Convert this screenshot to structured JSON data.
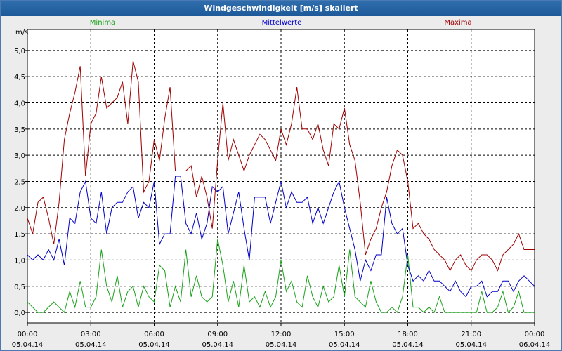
{
  "window": {
    "title": "Windgeschwindigkeit [m/s] skaliert"
  },
  "colors": {
    "minima": "#1aa21a",
    "mittelwerte": "#0000c8",
    "maxima": "#a00000",
    "title_bar": "#1e5a9a"
  },
  "chart_data": {
    "type": "line",
    "title": "Windgeschwindigkeit [m/s] skaliert",
    "ylabel": "m/s",
    "xlabel": "",
    "ylim": [
      -0.2,
      5.4
    ],
    "grid": true,
    "legend_placement": "top",
    "y_ticks": [
      "0,0",
      "0,5",
      "1,0",
      "1,5",
      "2,0",
      "2,5",
      "3,0",
      "3,5",
      "4,0",
      "4,5",
      "5,0"
    ],
    "x_ticks": [
      {
        "time": "00:00",
        "date": "05.04.14"
      },
      {
        "time": "03:00",
        "date": "05.04.14"
      },
      {
        "time": "06:00",
        "date": "05.04.14"
      },
      {
        "time": "09:00",
        "date": "05.04.14"
      },
      {
        "time": "12:00",
        "date": "05.04.14"
      },
      {
        "time": "15:00",
        "date": "05.04.14"
      },
      {
        "time": "18:00",
        "date": "05.04.14"
      },
      {
        "time": "21:00",
        "date": "05.04.14"
      },
      {
        "time": "00:00",
        "date": "06.04.14"
      }
    ],
    "x_hours": [
      0,
      0.25,
      0.5,
      0.75,
      1,
      1.25,
      1.5,
      1.75,
      2,
      2.25,
      2.5,
      2.75,
      3,
      3.25,
      3.5,
      3.75,
      4,
      4.25,
      4.5,
      4.75,
      5,
      5.25,
      5.5,
      5.75,
      6,
      6.25,
      6.5,
      6.75,
      7,
      7.25,
      7.5,
      7.75,
      8,
      8.25,
      8.5,
      8.75,
      9,
      9.25,
      9.5,
      9.75,
      10,
      10.25,
      10.5,
      10.75,
      11,
      11.25,
      11.5,
      11.75,
      12,
      12.25,
      12.5,
      12.75,
      13,
      13.25,
      13.5,
      13.75,
      14,
      14.25,
      14.5,
      14.75,
      15,
      15.25,
      15.5,
      15.75,
      16,
      16.25,
      16.5,
      16.75,
      17,
      17.25,
      17.5,
      17.75,
      18,
      18.25,
      18.5,
      18.75,
      19,
      19.25,
      19.5,
      19.75,
      20,
      20.25,
      20.5,
      20.75,
      21,
      21.25,
      21.5,
      21.75,
      22,
      22.25,
      22.5,
      22.75,
      23,
      23.25,
      23.5,
      23.75,
      24
    ],
    "series": [
      {
        "name": "Minima",
        "color": "#1aa21a",
        "values": [
          0.2,
          0.1,
          0.0,
          0.0,
          0.1,
          0.2,
          0.1,
          0.0,
          0.4,
          0.1,
          0.6,
          0.1,
          0.1,
          0.3,
          1.2,
          0.5,
          0.2,
          0.7,
          0.1,
          0.4,
          0.5,
          0.1,
          0.5,
          0.3,
          0.2,
          0.9,
          0.8,
          0.1,
          0.5,
          0.2,
          1.2,
          0.3,
          0.7,
          0.3,
          0.2,
          0.3,
          1.4,
          0.9,
          0.2,
          0.6,
          0.1,
          0.9,
          0.2,
          0.3,
          0.1,
          0.4,
          0.1,
          0.3,
          1.0,
          0.4,
          0.6,
          0.2,
          0.1,
          0.7,
          0.3,
          0.1,
          0.5,
          0.2,
          0.3,
          0.9,
          0.3,
          1.2,
          0.3,
          0.2,
          0.1,
          0.6,
          0.2,
          0.0,
          0.0,
          0.1,
          0.0,
          0.3,
          1.1,
          0.1,
          0.1,
          0.0,
          0.1,
          0.0,
          0.3,
          0.0,
          0.0,
          0.0,
          0.0,
          0.0,
          0.0,
          0.0,
          0.4,
          0.0,
          0.0,
          0.1,
          0.4,
          0.0,
          0.1,
          0.4,
          0.0,
          0.0,
          0.0
        ]
      },
      {
        "name": "Mittelwerte",
        "color": "#0000c8",
        "values": [
          1.1,
          1.0,
          1.1,
          1.0,
          1.2,
          1.0,
          1.4,
          0.9,
          1.8,
          1.7,
          2.3,
          2.5,
          1.8,
          1.7,
          2.3,
          1.5,
          2.0,
          2.1,
          2.1,
          2.3,
          2.4,
          1.8,
          2.1,
          2.0,
          2.5,
          1.3,
          1.5,
          1.5,
          2.6,
          2.6,
          1.7,
          1.5,
          1.9,
          1.4,
          1.7,
          2.4,
          2.3,
          2.4,
          1.5,
          1.9,
          2.3,
          1.6,
          1.0,
          2.2,
          2.2,
          2.2,
          1.7,
          2.1,
          2.5,
          2.0,
          2.3,
          2.1,
          2.1,
          2.2,
          1.7,
          2.0,
          1.7,
          2.0,
          2.3,
          2.5,
          2.0,
          1.6,
          1.2,
          0.6,
          1.0,
          0.8,
          1.1,
          1.1,
          2.2,
          1.7,
          1.5,
          1.6,
          0.9,
          0.6,
          0.7,
          0.6,
          0.8,
          0.6,
          0.6,
          0.5,
          0.4,
          0.6,
          0.4,
          0.3,
          0.5,
          0.5,
          0.6,
          0.3,
          0.4,
          0.4,
          0.6,
          0.6,
          0.4,
          0.6,
          0.7,
          0.6,
          0.5
        ]
      },
      {
        "name": "Maxima",
        "color": "#a00000",
        "values": [
          1.8,
          1.5,
          2.1,
          2.2,
          1.8,
          1.3,
          2.1,
          3.3,
          3.8,
          4.2,
          4.7,
          2.6,
          3.6,
          3.8,
          4.5,
          3.9,
          4.0,
          4.1,
          4.4,
          3.6,
          4.8,
          4.4,
          2.3,
          2.5,
          3.3,
          2.9,
          3.7,
          4.3,
          2.7,
          2.7,
          2.7,
          2.8,
          2.2,
          2.6,
          2.2,
          1.6,
          2.9,
          4.0,
          2.9,
          3.3,
          3.0,
          2.7,
          3.0,
          3.2,
          3.4,
          3.3,
          3.1,
          2.9,
          3.5,
          3.2,
          3.6,
          4.3,
          3.5,
          3.5,
          3.3,
          3.6,
          3.1,
          2.8,
          3.6,
          3.5,
          3.9,
          3.2,
          2.9,
          2.1,
          1.1,
          1.4,
          1.6,
          2.0,
          2.3,
          2.8,
          3.1,
          3.0,
          2.5,
          1.6,
          1.7,
          1.5,
          1.4,
          1.2,
          1.1,
          1.0,
          0.8,
          1.0,
          1.1,
          0.9,
          0.8,
          1.0,
          1.1,
          1.1,
          1.0,
          0.8,
          1.1,
          1.2,
          1.3,
          1.5,
          1.2,
          1.2,
          1.2
        ]
      }
    ]
  }
}
